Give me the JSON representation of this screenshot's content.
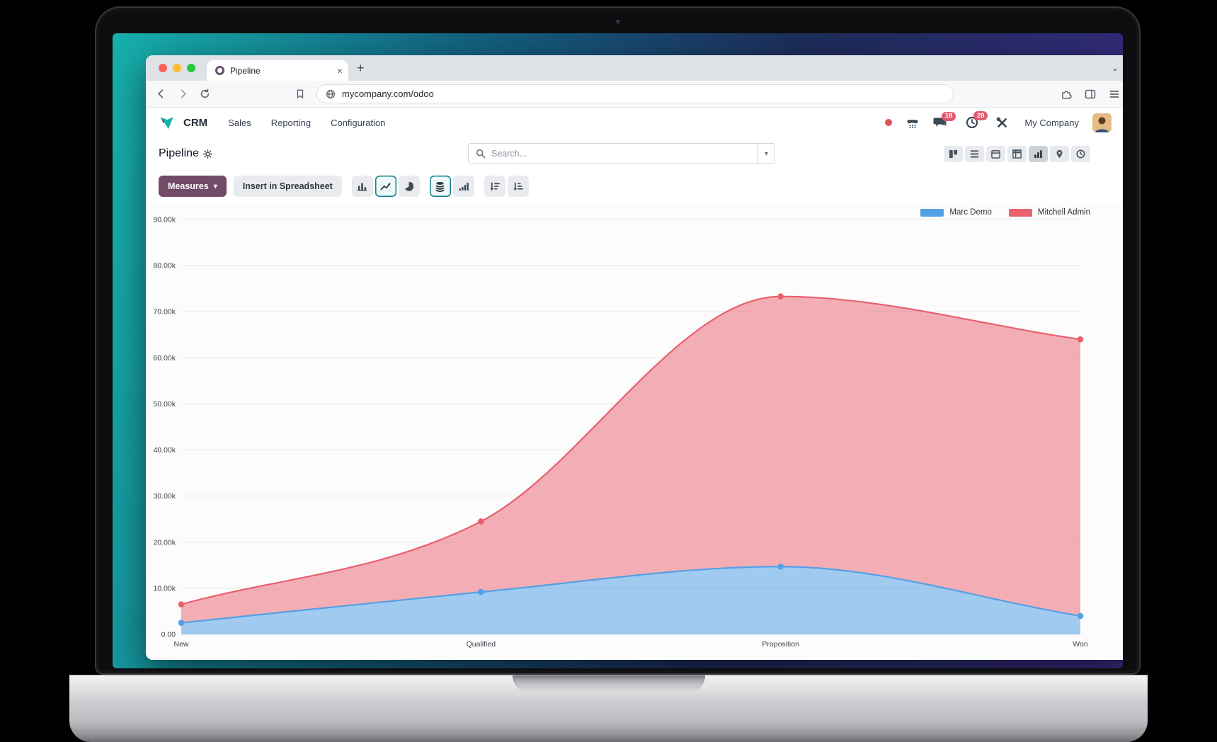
{
  "icons": {
    "close_glyph": "×",
    "plus_glyph": "+",
    "chevron_glyph": "⌄",
    "caret_glyph": "▾"
  },
  "browser": {
    "tab_title": "Pipeline",
    "url": "mycompany.com/odoo",
    "toolbar_icons": [
      "back-icon",
      "forward-icon",
      "reload-icon",
      "bookmark-icon",
      "globe-icon",
      "extensions-icon",
      "side-panel-icon",
      "menu-icon"
    ]
  },
  "nav": {
    "app": "CRM",
    "items": [
      "Sales",
      "Reporting",
      "Configuration"
    ],
    "systray": {
      "icons": [
        "presence-dot",
        "phone-icon",
        "chat-icon",
        "activity-clock-icon",
        "tools-icon"
      ],
      "chat_badge": "18",
      "activity_badge": "28",
      "company_label": "My Company"
    }
  },
  "control_panel": {
    "title": "Pipeline",
    "search_placeholder": "Search...",
    "views": [
      "kanban",
      "list",
      "calendar",
      "pivot",
      "graph",
      "map",
      "activity"
    ],
    "active_view": "graph"
  },
  "graph_toolbar": {
    "measures_label": "Measures",
    "insert_spreadsheet_label": "Insert in Spreadsheet",
    "chart_type_buttons": [
      "bar-chart",
      "line-chart",
      "pie-chart"
    ],
    "active_chart_type": "line-chart",
    "mode_buttons": [
      "stacked",
      "cumulative"
    ],
    "active_mode": "stacked",
    "sort_buttons": [
      "sort-descending",
      "sort-ascending"
    ]
  },
  "theme": {
    "accent_purple": "#714b67",
    "accent_teal": "#11808a",
    "badge_red": "#e4596b"
  },
  "chart_data": {
    "type": "area",
    "stacked": true,
    "smooth": true,
    "categories": [
      "New",
      "Qualified",
      "Proposition",
      "Won"
    ],
    "series": [
      {
        "name": "Marc Demo",
        "color": "#54a0e4",
        "fill_rgba": "rgba(84,160,228,0.55)",
        "values": [
          2500,
          9200,
          14700,
          4000
        ]
      },
      {
        "name": "Mitchell Admin",
        "color": "#e9606e",
        "fill_rgba": "rgba(233,96,110,0.5)",
        "values": [
          4000,
          15300,
          58600,
          60000
        ],
        "stacked_top_values": [
          6500,
          24500,
          73300,
          64000
        ]
      }
    ],
    "ylim": [
      0,
      90000
    ],
    "ytick_step": 10000,
    "ytick_labels": [
      "0.00",
      "10.00k",
      "20.00k",
      "30.00k",
      "40.00k",
      "50.00k",
      "60.00k",
      "70.00k",
      "80.00k",
      "90.00k"
    ],
    "grid": true,
    "legend_position": "top-right"
  }
}
